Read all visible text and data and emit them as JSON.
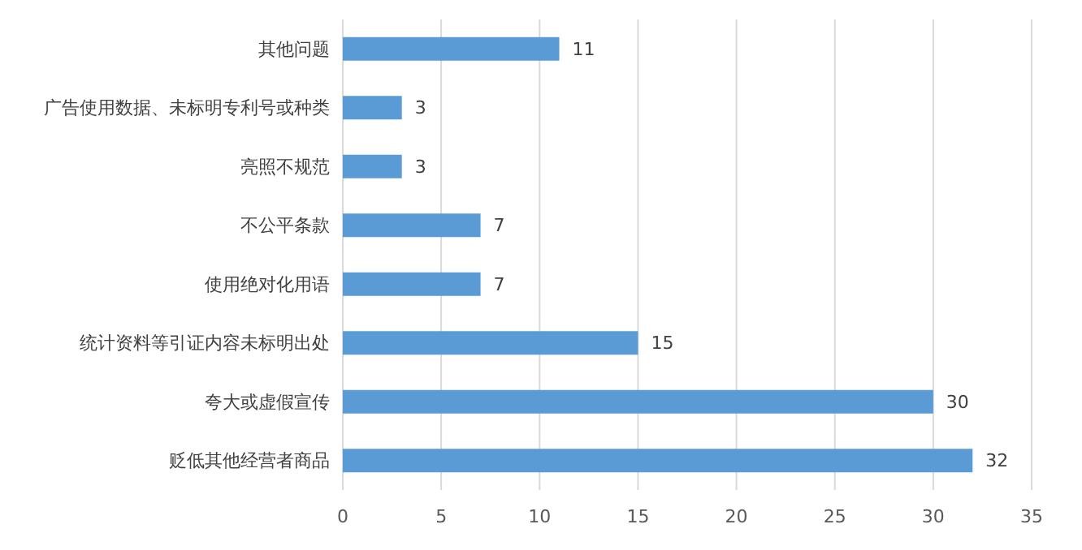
{
  "chart_data": {
    "type": "bar",
    "orientation": "horizontal",
    "categories": [
      "其他问题",
      "广告使用数据、未标明专利号或种类",
      "亮照不规范",
      "不公平条款",
      "使用绝对化用语",
      "统计资料等引证内容未标明出处",
      "夸大或虚假宣传",
      "贬低其他经营者商品"
    ],
    "values": [
      11,
      3,
      3,
      7,
      7,
      15,
      30,
      32
    ],
    "color": "#5b9bd5",
    "xlim": [
      0,
      35
    ],
    "xticks": [
      0,
      5,
      10,
      15,
      20,
      25,
      30,
      35
    ],
    "grid": "x",
    "data_labels": true
  }
}
